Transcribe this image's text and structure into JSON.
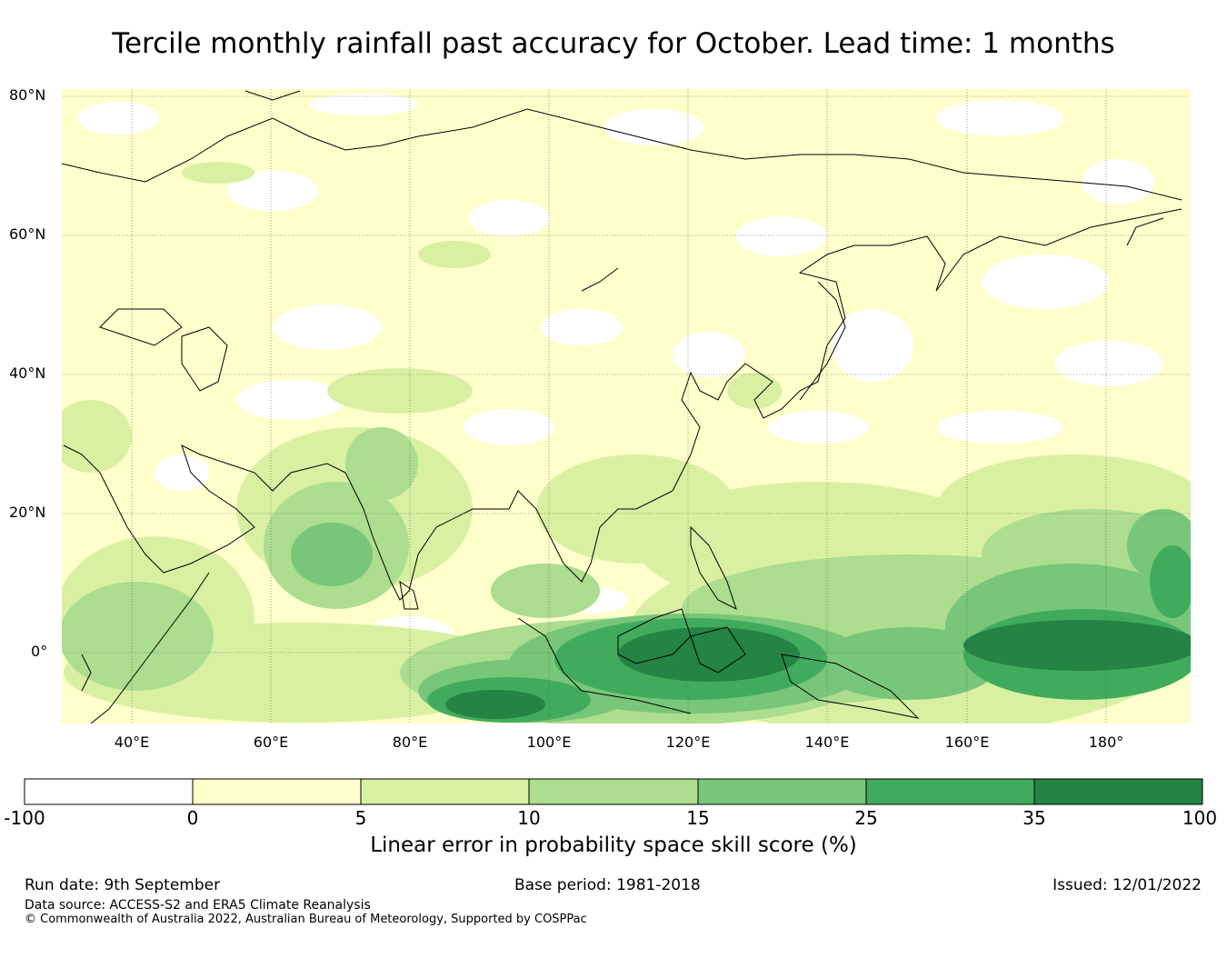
{
  "title": "Tercile monthly rainfall past accuracy for October. Lead time: 1 months",
  "map": {
    "lat_labels": [
      "80°N",
      "60°N",
      "40°N",
      "20°N",
      "0°"
    ],
    "lon_labels": [
      "40°E",
      "60°E",
      "80°E",
      "100°E",
      "120°E",
      "140°E",
      "160°E",
      "180°"
    ],
    "extent": {
      "lon_min": 30,
      "lon_max": 192,
      "lat_min": -10,
      "lat_max": 80
    }
  },
  "colorbar": {
    "title": "Linear error in probability space skill score (%)",
    "ticks": [
      "-100",
      "0",
      "5",
      "10",
      "15",
      "25",
      "35",
      "100"
    ],
    "colors": [
      "#ffffff",
      "#ffffcc",
      "#d9f0a3",
      "#addd8e",
      "#78c679",
      "#41ab5d",
      "#238443"
    ]
  },
  "footer": {
    "run_date": "Run date: 9th September",
    "base_period": "Base period: 1981-2018",
    "issued": "Issued: 12/01/2022",
    "data_source": "Data source: ACCESS-S2 and ERA5 Climate Reanalysis",
    "copyright": "© Commonwealth of Australia 2022, Australian Bureau of Meteorology, Supported by COSPPac"
  }
}
